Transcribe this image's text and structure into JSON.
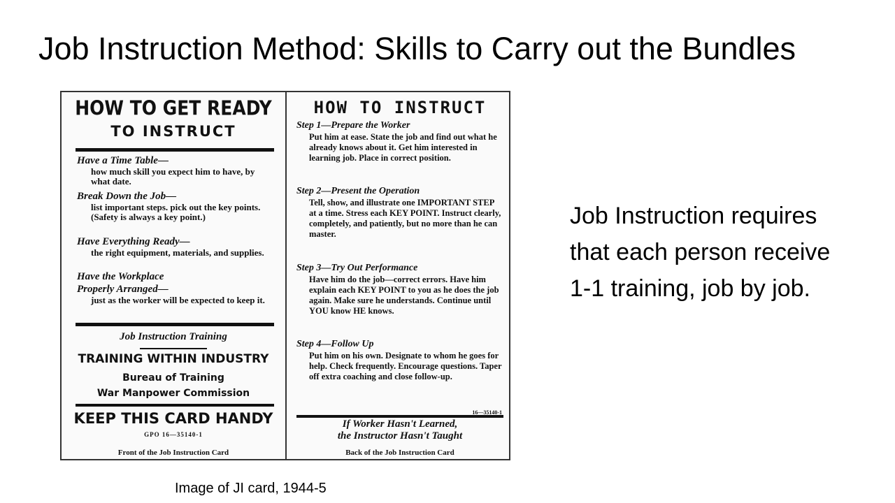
{
  "slide": {
    "title": "Job Instruction Method: Skills to Carry out the Bundles",
    "side_text": "Job Instruction requires\nthat each person receive\n1-1 training, job by job.",
    "image_caption": "Image of JI card, 1944-5"
  },
  "card_front": {
    "heading_line1": "HOW TO GET READY",
    "heading_line2": "TO INSTRUCT",
    "items": [
      {
        "head": "Have a Time Table—",
        "text": "how much skill you expect him to have, by what date."
      },
      {
        "head": "Break Down the Job—",
        "text": "list important steps. pick out the key points. (Safety is always a key point.)"
      },
      {
        "head": "Have Everything Ready—",
        "text": "the right equipment, materials, and supplies."
      },
      {
        "head": "Have the Workplace",
        "text": ""
      },
      {
        "head": "Properly Arranged—",
        "text": "just as the worker will be expected to keep it."
      }
    ],
    "jit_label": "Job Instruction Training",
    "twi": "TRAINING WITHIN INDUSTRY",
    "bureau": "Bureau of Training",
    "commission": "War Manpower Commission",
    "keep": "KEEP THIS CARD HANDY",
    "gpo": "GPO     16—35140-1",
    "caption": "Front of the Job Instruction Card"
  },
  "card_back": {
    "heading": "HOW TO INSTRUCT",
    "steps": [
      {
        "head": "Step 1—Prepare the Worker",
        "text": "Put him at ease. State the job and find out what he already knows about it. Get him interested in learning job. Place in correct position."
      },
      {
        "head": "Step 2—Present the Operation",
        "text": "Tell, show, and illustrate one IMPORTANT STEP at a time. Stress each KEY POINT. Instruct clearly, completely, and patiently, but no more than he can master."
      },
      {
        "head": "Step 3—Try Out Performance",
        "text": "Have him do the job—correct errors. Have him explain each KEY POINT to you as he does the job again. Make sure he understands. Continue until YOU know HE knows."
      },
      {
        "head": "Step 4—Follow Up",
        "text": "Put him on his own. Designate to whom he goes for help. Check frequently. Encourage questions. Taper off extra coaching and close follow-up."
      }
    ],
    "code": "16—35140-1",
    "footer_line1": "If Worker Hasn't Learned,",
    "footer_line2": "the Instructor Hasn't Taught",
    "caption": "Back of the Job Instruction Card"
  }
}
